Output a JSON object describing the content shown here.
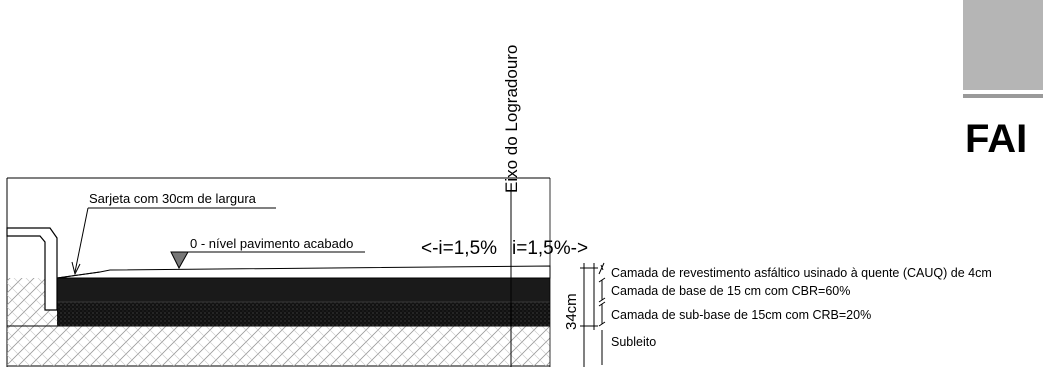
{
  "axis_label": "Eixo do Logradouro",
  "corner_text": "FAI",
  "gutter_label": "Sarjeta com 30cm de largura",
  "level_label": "0 - nível pavimento acabado",
  "slope_left": "<-i=1,5%",
  "slope_right": "i=1,5%->",
  "dimension_label": "34cm",
  "layers": [
    {
      "label": "Camada de revestimento asfáltico usinado à quente (CAUQ) de 4cm"
    },
    {
      "label": "Camada de base de 15 cm com CBR=60%"
    },
    {
      "label": "Camada de sub-base de 15cm com CRB=20%"
    },
    {
      "label": "Subleito"
    }
  ],
  "colors": {
    "base_layer": "#1a1a1a",
    "subbase_layer": "#0d0d0d",
    "corner_block": "#b5b5b5",
    "line": "#000000"
  }
}
